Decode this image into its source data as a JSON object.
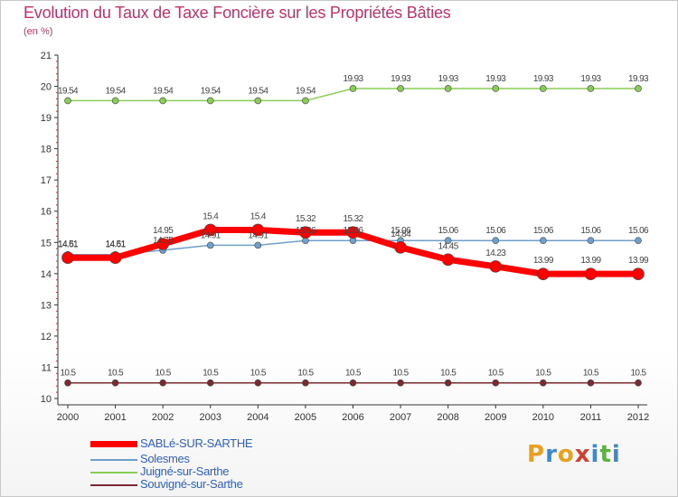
{
  "chart_data": {
    "type": "line",
    "title": "Evolution du Taux de Taxe Foncière sur les Propriétés Bâties",
    "subtitle": "(en %)",
    "categories": [
      "2000",
      "2001",
      "2002",
      "2003",
      "2004",
      "2005",
      "2006",
      "2007",
      "2008",
      "2009",
      "2010",
      "2011",
      "2012"
    ],
    "ylim": [
      10,
      21
    ],
    "yticks": [
      "10",
      "11",
      "12",
      "13",
      "14",
      "15",
      "16",
      "17",
      "18",
      "19",
      "20",
      "21"
    ],
    "grid": false,
    "legend_position": "bottom-left",
    "series": [
      {
        "name": "SABLé-SUR-SARTHE",
        "color": "#ff0000",
        "values": [
          14.51,
          14.51,
          14.95,
          15.4,
          15.4,
          15.32,
          15.32,
          14.84,
          14.45,
          14.23,
          13.99,
          13.99,
          13.99
        ],
        "labels": [
          "14.51",
          "14.51",
          "14.95",
          "15.4",
          "15.4",
          "15.32",
          "15.32",
          "14.84",
          "14.45",
          "14.23",
          "13.99",
          "13.99",
          "13.99"
        ]
      },
      {
        "name": "Solesmes",
        "color": "#6fa0cc",
        "values": [
          14.61,
          14.61,
          14.75,
          14.91,
          14.91,
          15.06,
          15.06,
          15.06,
          15.06,
          15.06,
          15.06,
          15.06,
          15.06
        ],
        "labels": [
          "14.61",
          "14.61",
          "14.75",
          "14.91",
          "14.91",
          "15.06",
          "15.06",
          "15.06",
          "15.06",
          "15.06",
          "15.06",
          "15.06",
          "15.06"
        ]
      },
      {
        "name": "Juigné-sur-Sarthe",
        "color": "#88cc55",
        "values": [
          19.54,
          19.54,
          19.54,
          19.54,
          19.54,
          19.54,
          19.93,
          19.93,
          19.93,
          19.93,
          19.93,
          19.93,
          19.93
        ],
        "labels": [
          "19.54",
          "19.54",
          "19.54",
          "19.54",
          "19.54",
          "19.54",
          "19.93",
          "19.93",
          "19.93",
          "19.93",
          "19.93",
          "19.93",
          "19.93"
        ]
      },
      {
        "name": "Souvigné-sur-Sarthe",
        "color": "#7a2a30",
        "values": [
          10.5,
          10.5,
          10.5,
          10.5,
          10.5,
          10.5,
          10.5,
          10.5,
          10.5,
          10.5,
          10.5,
          10.5,
          10.5
        ],
        "labels": [
          "10.5",
          "10.5",
          "10.5",
          "10.5",
          "10.5",
          "10.5",
          "10.5",
          "10.5",
          "10.5",
          "10.5",
          "10.5",
          "10.5",
          "10.5"
        ]
      }
    ]
  },
  "logo": {
    "letters": [
      "P",
      "r",
      "o",
      "x",
      "i",
      "t",
      "i"
    ],
    "colors": [
      "#e8a020",
      "#3a8ad0",
      "#e8a020",
      "#d04030",
      "#3a8ad0",
      "#60b040",
      "#3a8ad0"
    ]
  }
}
